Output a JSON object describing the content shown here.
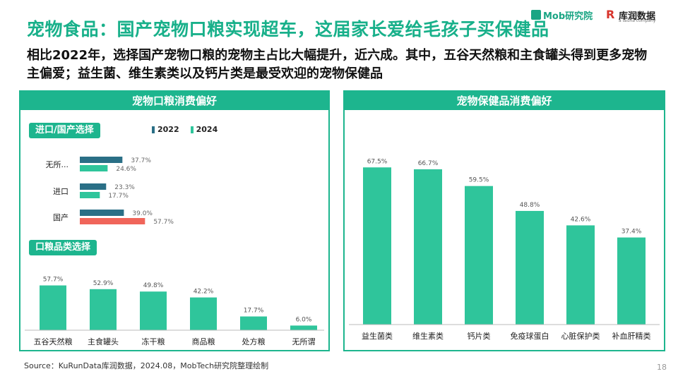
{
  "header": {
    "title": "宠物食品：国产宠物口粮实现超车，这届家长爱给毛孩子买保健品",
    "subtitle": "相比2022年，选择国产宠物口粮的宠物主占比大幅提升，近六成。其中，五谷天然粮和主食罐头得到更多宠物主偏爱；益生菌、维生素类以及钙片类是最受欢迎的宠物保健品"
  },
  "logos": {
    "mob": "Mob研究院",
    "kurun": "库润数据",
    "kurun_sub": "a tauna company"
  },
  "left_panel": {
    "title": "宠物口粮消费偏好",
    "pill1": "进口/国产选择",
    "pill2": "口粮品类选择"
  },
  "right_panel": {
    "title": "宠物保健品消费偏好"
  },
  "colors": {
    "accent": "#1db58e",
    "series2022": "#2a6f86",
    "series2024": "#2fc59b",
    "highlight": "#f0655a"
  },
  "chart_data": [
    {
      "type": "bar",
      "orientation": "horizontal",
      "title": "进口/国产选择",
      "categories": [
        "无所...",
        "进口",
        "国产"
      ],
      "series": [
        {
          "name": "2022",
          "values": [
            37.7,
            23.3,
            39.0
          ]
        },
        {
          "name": "2024",
          "values": [
            24.6,
            17.7,
            57.7
          ]
        }
      ],
      "unit": "%",
      "legend": "top"
    },
    {
      "type": "bar",
      "title": "口粮品类选择",
      "categories": [
        "五谷天然粮",
        "主食罐头",
        "冻干粮",
        "商品粮",
        "处方粮",
        "无所谓"
      ],
      "values": [
        57.7,
        52.9,
        49.8,
        42.2,
        17.7,
        6.0
      ],
      "unit": "%"
    },
    {
      "type": "bar",
      "title": "宠物保健品消费偏好",
      "categories": [
        "益生菌类",
        "维生素类",
        "钙片类",
        "免疫球蛋白",
        "心脏保护类",
        "补血肝精类"
      ],
      "values": [
        67.5,
        66.7,
        59.5,
        48.8,
        42.6,
        37.4
      ],
      "unit": "%"
    }
  ],
  "footer": {
    "source": "Source：KuRunData库润数据，2024.08，MobTech研究院整理绘制",
    "page": "18"
  }
}
